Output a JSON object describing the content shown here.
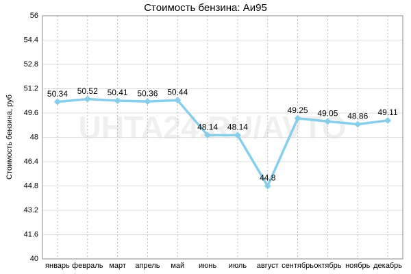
{
  "chart_data": {
    "type": "line",
    "title": "Стоимость бензина: Аи95",
    "ylabel": "Стоимость бензина, руб",
    "watermark": "UHTA24.RU/AVTO",
    "categories": [
      "январь",
      "февраль",
      "март",
      "апрель",
      "май",
      "июнь",
      "июль",
      "август",
      "сентябрь",
      "октябрь",
      "ноябрь",
      "декабрь"
    ],
    "values": [
      50.34,
      50.52,
      50.41,
      50.36,
      50.44,
      48.14,
      48.14,
      44.8,
      49.25,
      49.05,
      48.86,
      49.11
    ],
    "color": "#87ceeb",
    "ylim": [
      40,
      56
    ],
    "yticks": [
      40,
      41.6,
      43.2,
      44.8,
      46.4,
      48,
      49.6,
      51.2,
      52.8,
      54.4,
      56
    ],
    "grid": true
  }
}
